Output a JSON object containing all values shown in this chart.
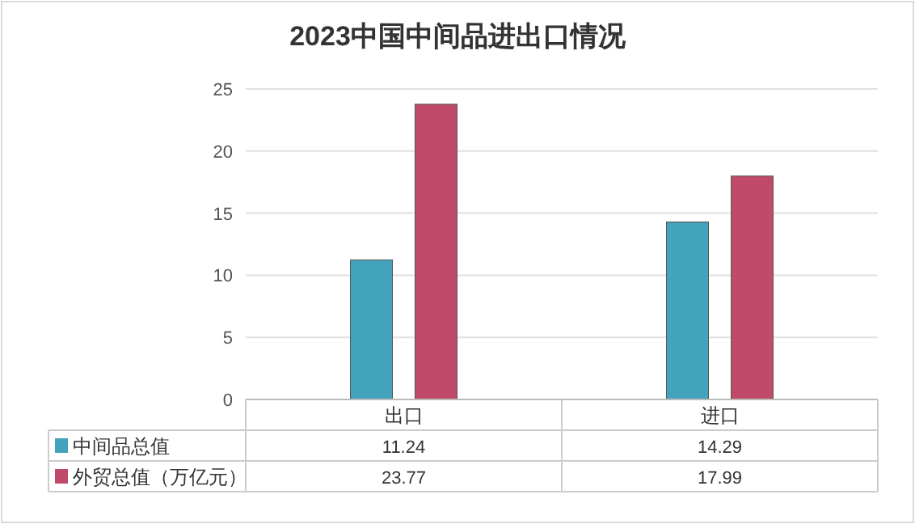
{
  "chart_data": {
    "type": "bar",
    "title": "2023中国中间品进出口情况",
    "categories": [
      "出口",
      "进口"
    ],
    "series": [
      {
        "name": "中间品总值",
        "color": "#43a3bc",
        "values": [
          11.24,
          14.29
        ]
      },
      {
        "name": "外贸总值（万亿元）",
        "color": "#c04a6a",
        "values": [
          23.77,
          17.99
        ]
      }
    ],
    "ylim": [
      0,
      25
    ],
    "yticks": [
      0,
      5,
      10,
      15,
      20,
      25
    ],
    "grid": "y",
    "legend": "bottom",
    "data_labels": true
  }
}
